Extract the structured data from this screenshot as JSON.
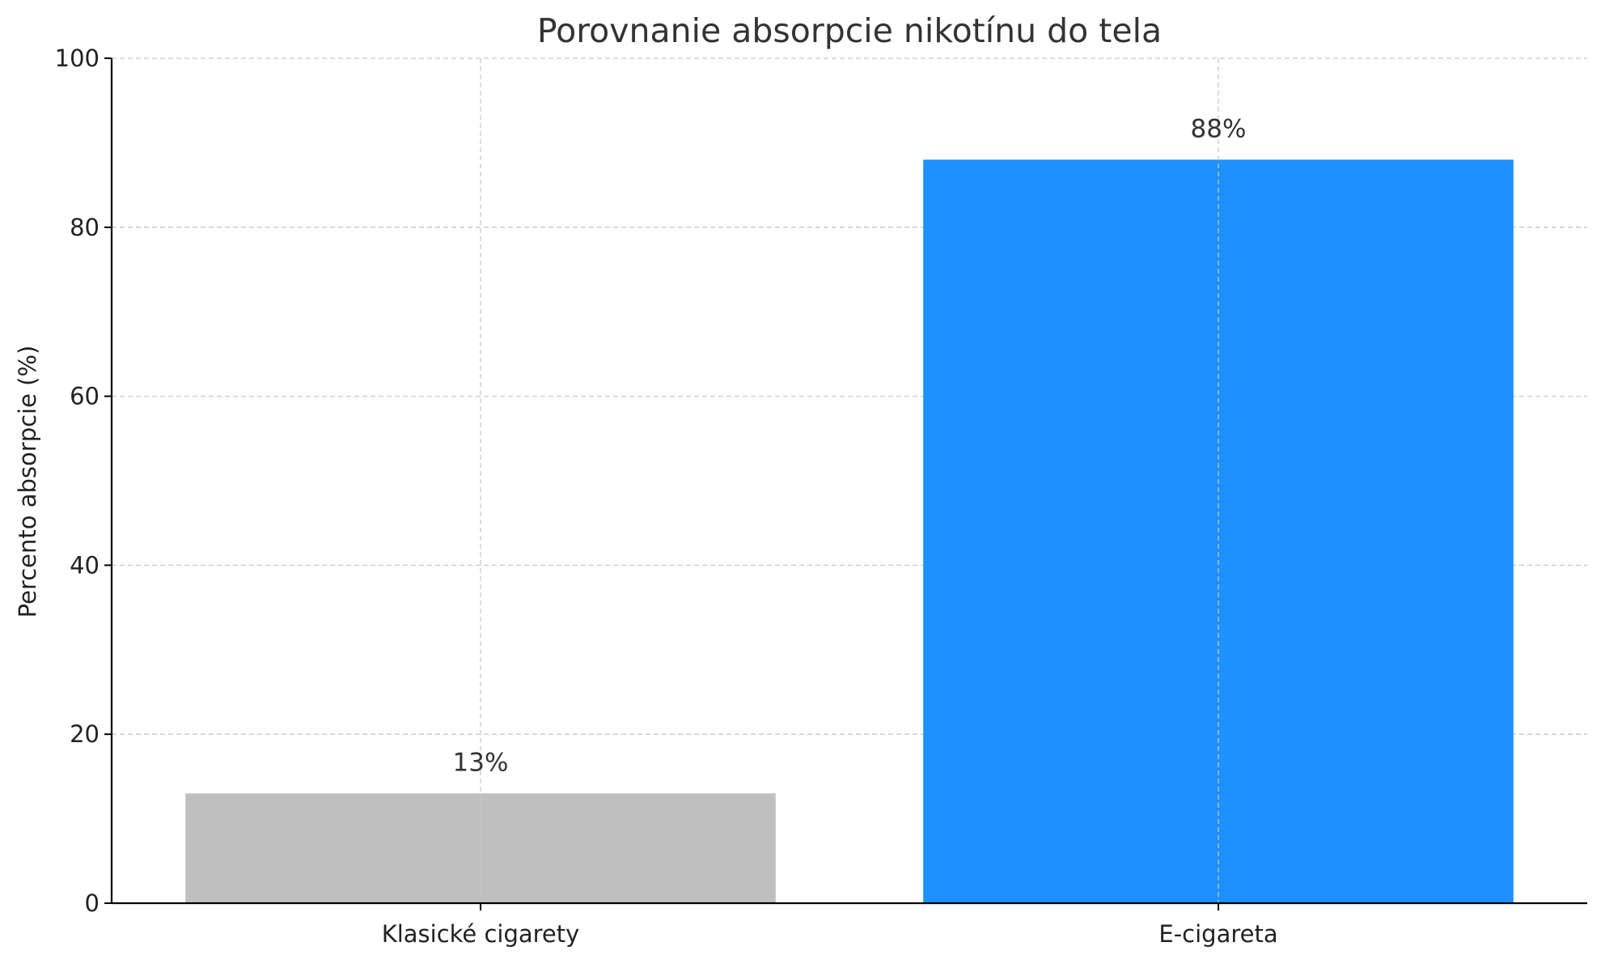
{
  "chart_data": {
    "type": "bar",
    "title": "Porovnanie absorpcie nikotínu do tela",
    "xlabel": "",
    "ylabel": "Percento absorpcie (%)",
    "categories": [
      "Klasické cigarety",
      "E-cigareta"
    ],
    "values": [
      13,
      88
    ],
    "value_labels": [
      "13%",
      "88%"
    ],
    "colors": [
      "#bfbfbf",
      "#1e90ff"
    ],
    "ylim": [
      0,
      100
    ],
    "yticks": [
      0,
      20,
      40,
      60,
      80,
      100
    ],
    "grid": true
  }
}
